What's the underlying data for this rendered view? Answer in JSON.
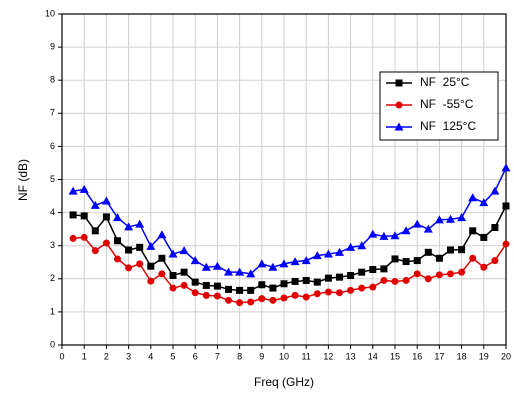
{
  "chart_data": {
    "type": "line",
    "xlabel": "Freq (GHz)",
    "ylabel": "NF (dB)",
    "x": [
      0.5,
      1,
      1.5,
      2,
      2.5,
      3,
      3.5,
      4,
      4.5,
      5,
      5.5,
      6,
      6.5,
      7,
      7.5,
      8,
      8.5,
      9,
      9.5,
      10,
      10.5,
      11,
      11.5,
      12,
      12.5,
      13,
      13.5,
      14,
      14.5,
      15,
      15.5,
      16,
      16.5,
      17,
      17.5,
      18,
      18.5,
      19,
      19.5,
      20
    ],
    "series": [
      {
        "name": "NF  25°C",
        "color": "#000000",
        "marker": "square",
        "values": [
          3.93,
          3.9,
          3.45,
          3.87,
          3.15,
          2.87,
          2.95,
          2.38,
          2.62,
          2.1,
          2.2,
          1.9,
          1.8,
          1.78,
          1.68,
          1.65,
          1.65,
          1.82,
          1.72,
          1.85,
          1.92,
          1.95,
          1.9,
          2.02,
          2.05,
          2.1,
          2.2,
          2.28,
          2.3,
          2.6,
          2.52,
          2.55,
          2.8,
          2.62,
          2.87,
          2.88,
          3.45,
          3.25,
          3.55,
          4.2
        ]
      },
      {
        "name": "NF  -55°C",
        "color": "#e00000",
        "marker": "circle",
        "values": [
          3.22,
          3.25,
          2.85,
          3.08,
          2.6,
          2.33,
          2.45,
          1.93,
          2.15,
          1.72,
          1.8,
          1.58,
          1.5,
          1.48,
          1.35,
          1.28,
          1.3,
          1.4,
          1.35,
          1.42,
          1.5,
          1.45,
          1.55,
          1.6,
          1.58,
          1.65,
          1.72,
          1.75,
          1.95,
          1.92,
          1.95,
          2.15,
          2.0,
          2.12,
          2.15,
          2.2,
          2.62,
          2.35,
          2.55,
          3.05
        ]
      },
      {
        "name": "NF  125°C",
        "color": "#0000ff",
        "marker": "triangle",
        "values": [
          4.65,
          4.7,
          4.22,
          4.35,
          3.85,
          3.57,
          3.65,
          2.98,
          3.33,
          2.75,
          2.85,
          2.55,
          2.35,
          2.38,
          2.2,
          2.2,
          2.15,
          2.45,
          2.35,
          2.45,
          2.52,
          2.55,
          2.7,
          2.75,
          2.8,
          2.95,
          3.0,
          3.35,
          3.28,
          3.3,
          3.45,
          3.65,
          3.5,
          3.78,
          3.8,
          3.85,
          4.45,
          4.3,
          4.65,
          5.35
        ]
      }
    ],
    "xlim": [
      0,
      20
    ],
    "xticks": [
      0,
      1,
      2,
      3,
      4,
      5,
      6,
      7,
      8,
      9,
      10,
      11,
      12,
      13,
      14,
      15,
      16,
      17,
      18,
      19,
      20
    ],
    "ylim": [
      0,
      10
    ],
    "yticks": [
      0,
      1,
      2,
      3,
      4,
      5,
      6,
      7,
      8,
      9,
      10
    ],
    "grid": true,
    "legend": "upper right"
  }
}
